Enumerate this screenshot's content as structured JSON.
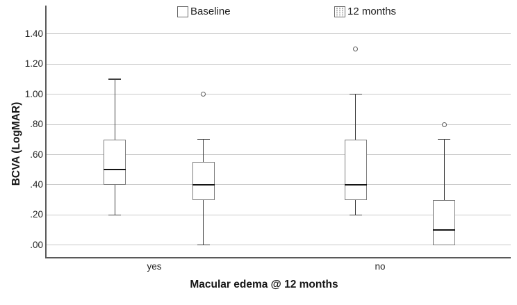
{
  "chart_data": {
    "type": "boxplot",
    "title": "",
    "xlabel": "Macular edema @ 12 months",
    "ylabel": "BCVA (LogMAR)",
    "categories": [
      "yes",
      "no"
    ],
    "ylim": [
      -0.09,
      1.58
    ],
    "grid": "horizontal",
    "legend_position": "top",
    "yticks": [
      {
        "label": ".00",
        "value": 0.0
      },
      {
        "label": ".20",
        "value": 0.2
      },
      {
        "label": ".40",
        "value": 0.4
      },
      {
        "label": ".60",
        "value": 0.6
      },
      {
        "label": ".80",
        "value": 0.8
      },
      {
        "label": "1.00",
        "value": 1.0
      },
      {
        "label": "1.20",
        "value": 1.2
      },
      {
        "label": "1.40",
        "value": 1.4
      }
    ],
    "legend": [
      {
        "label": "Baseline",
        "fill": "plain"
      },
      {
        "label": "12 months",
        "fill": "dotted"
      }
    ],
    "series": [
      {
        "name": "Baseline",
        "fill": "plain",
        "boxes": [
          {
            "category": "yes",
            "whisker_min": 0.2,
            "q1": 0.4,
            "median": 0.5,
            "q3": 0.7,
            "whisker_max": 1.1,
            "outliers": []
          },
          {
            "category": "no",
            "whisker_min": 0.2,
            "q1": 0.3,
            "median": 0.4,
            "q3": 0.7,
            "whisker_max": 1.0,
            "outliers": [
              1.3
            ]
          }
        ]
      },
      {
        "name": "12 months",
        "fill": "dotted",
        "boxes": [
          {
            "category": "yes",
            "whisker_min": 0.0,
            "q1": 0.3,
            "median": 0.4,
            "q3": 0.55,
            "whisker_max": 0.7,
            "outliers": [
              1.0
            ]
          },
          {
            "category": "no",
            "whisker_min": 0.0,
            "q1": 0.0,
            "median": 0.1,
            "q3": 0.3,
            "whisker_max": 0.7,
            "outliers": [
              0.8
            ]
          }
        ]
      }
    ],
    "colors": {
      "gridline": "#c9c9c9",
      "axis": "#5a5a5a",
      "box_border": "#7b7b7b",
      "median": "#141414",
      "whisker": "#3f3f3f",
      "text": "#242424"
    }
  }
}
